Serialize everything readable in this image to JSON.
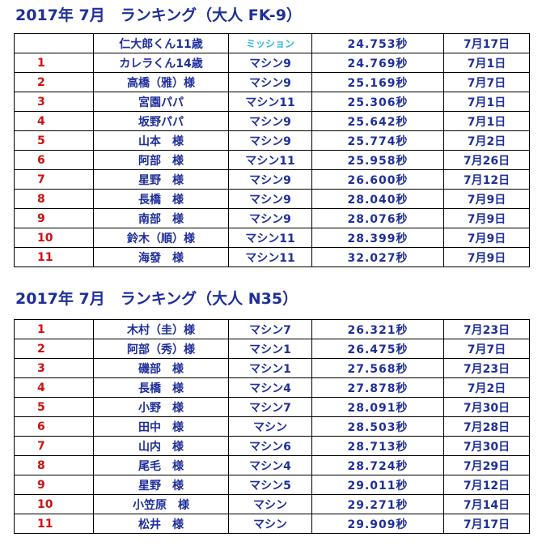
{
  "section1": {
    "title": "2017年 7月　ランキング（大人 FK-9）",
    "rows": [
      {
        "rank": "",
        "name": "仁大郎くん11歳",
        "machine": "ミッション",
        "time": "24.753秒",
        "date": "7月17日"
      },
      {
        "rank": "1",
        "name": "カレラくん14歳",
        "machine": "マシン9",
        "time": "24.769秒",
        "date": "7月1日"
      },
      {
        "rank": "2",
        "name": "高橋（雅）様",
        "machine": "マシン9",
        "time": "25.169秒",
        "date": "7月7日"
      },
      {
        "rank": "3",
        "name": "宮園パパ",
        "machine": "マシン11",
        "time": "25.306秒",
        "date": "7月1日"
      },
      {
        "rank": "4",
        "name": "坂野パパ",
        "machine": "マシン9",
        "time": "25.642秒",
        "date": "7月1日"
      },
      {
        "rank": "5",
        "name": "山本　様",
        "machine": "マシン9",
        "time": "25.774秒",
        "date": "7月2日"
      },
      {
        "rank": "6",
        "name": "阿部　様",
        "machine": "マシン11",
        "time": "25.958秒",
        "date": "7月26日"
      },
      {
        "rank": "7",
        "name": "星野　様",
        "machine": "マシン9",
        "time": "26.600秒",
        "date": "7月12日"
      },
      {
        "rank": "8",
        "name": "長橋　様",
        "machine": "マシン9",
        "time": "28.040秒",
        "date": "7月9日"
      },
      {
        "rank": "9",
        "name": "南部　様",
        "machine": "マシン9",
        "time": "28.076秒",
        "date": "7月9日"
      },
      {
        "rank": "10",
        "name": "鈴木（順）様",
        "machine": "マシン11",
        "time": "28.399秒",
        "date": "7月9日"
      },
      {
        "rank": "11",
        "name": "海發　様",
        "machine": "マシン11",
        "time": "32.027秒",
        "date": "7月9日"
      }
    ]
  },
  "section2": {
    "title": "2017年 7月　ランキング（大人 N35）",
    "rows": [
      {
        "rank": "1",
        "name": "木村（圭）様",
        "machine": "マシン7",
        "time": "26.321秒",
        "date": "7月23日"
      },
      {
        "rank": "2",
        "name": "阿部（秀）様",
        "machine": "マシン1",
        "time": "26.475秒",
        "date": "7月7日"
      },
      {
        "rank": "3",
        "name": "磯部　様",
        "machine": "マシン1",
        "time": "27.568秒",
        "date": "7月23日"
      },
      {
        "rank": "4",
        "name": "長橋　様",
        "machine": "マシン4",
        "time": "27.878秒",
        "date": "7月2日"
      },
      {
        "rank": "5",
        "name": "小野　様",
        "machine": "マシン7",
        "time": "28.091秒",
        "date": "7月30日"
      },
      {
        "rank": "6",
        "name": "田中　様",
        "machine": "マシン",
        "time": "28.503秒",
        "date": "7月28日"
      },
      {
        "rank": "7",
        "name": "山内　様",
        "machine": "マシン6",
        "time": "28.713秒",
        "date": "7月30日"
      },
      {
        "rank": "8",
        "name": "尾毛　様",
        "machine": "マシン4",
        "time": "28.724秒",
        "date": "7月29日"
      },
      {
        "rank": "9",
        "name": "星野　様",
        "machine": "マシン5",
        "time": "29.011秒",
        "date": "7月12日"
      },
      {
        "rank": "10",
        "name": "小笠原　様",
        "machine": "マシン",
        "time": "29.271秒",
        "date": "7月14日"
      },
      {
        "rank": "11",
        "name": "松井　様",
        "machine": "マシン",
        "time": "29.909秒",
        "date": "7月17日"
      }
    ]
  },
  "colors": {
    "text_blue": "#1f2f9a",
    "rank_red": "#d01010",
    "mission_cyan": "#30b8e8"
  }
}
